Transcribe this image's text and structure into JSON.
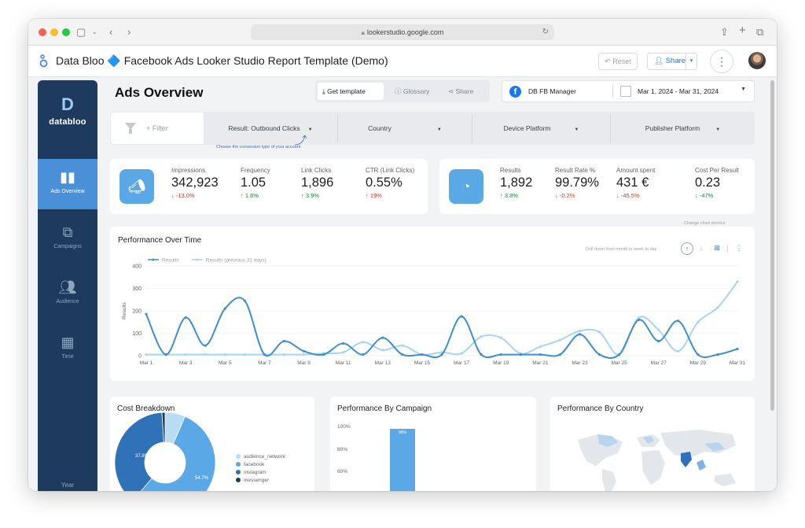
{
  "browser": {
    "url": "lookerstudio.google.com"
  },
  "header": {
    "title": "Data Bloo 🔷 Facebook Ads Looker Studio Report Template (Demo)",
    "reset_label": "Reset",
    "share_label": "Share"
  },
  "sidebar": {
    "brand": "databloo",
    "items": [
      {
        "label": "Ads Overview",
        "icon": "bar-chart-icon",
        "active": true
      },
      {
        "label": "Campaigns",
        "icon": "hierarchy-icon",
        "active": false
      },
      {
        "label": "Audience",
        "icon": "people-icon",
        "active": false
      },
      {
        "label": "Time",
        "icon": "calendar-icon",
        "active": false
      }
    ],
    "footer_label": "Year"
  },
  "page": {
    "title": "Ads Overview",
    "toolbar": {
      "get_template": "Get template",
      "glossary": "Glossary",
      "share": "Share"
    },
    "data_source": "DB FB Manager",
    "date_range": "Mar 1, 2024 - Mar 31, 2024"
  },
  "filters": {
    "add_label": "+ Filter",
    "result_dropdown": "Result: Outbound Clicks",
    "hint": "Choose the conversion type of your account",
    "dropdowns": [
      "Country",
      "Device Platform",
      "Publisher Platform"
    ]
  },
  "kpi_left": [
    {
      "label": "Impressions",
      "value": "342,923",
      "delta": "-13.0%",
      "trend": "down"
    },
    {
      "label": "Frequency",
      "value": "1.05",
      "delta": "1.6%",
      "trend": "up"
    },
    {
      "label": "Link Clicks",
      "value": "1,896",
      "delta": "3.9%",
      "trend": "up"
    },
    {
      "label": "CTR (Link Clicks)",
      "value": "0.55%",
      "delta": "19%",
      "trend": "down"
    }
  ],
  "kpi_right": [
    {
      "label": "Results",
      "value": "1,892",
      "delta": "3.8%",
      "trend": "up"
    },
    {
      "label": "Result Rate %",
      "value": "99.79%",
      "delta": "-0.2%",
      "trend": "down"
    },
    {
      "label": "Amount spent",
      "value": "431 €",
      "delta": "-45.5%",
      "trend": "down"
    },
    {
      "label": "Cost Per Result",
      "value": "0.23",
      "delta": "-47%",
      "trend": "up"
    }
  ],
  "performance": {
    "title": "Performance Over Time",
    "change_note": "Change chart metrics",
    "drill_note": "Drill down from month to week to day"
  },
  "chart_data": {
    "type": "line",
    "ylabel": "Results",
    "ylim": [
      0,
      400
    ],
    "yticks": [
      0,
      100,
      200,
      300,
      400
    ],
    "x": [
      "Mar 1",
      "Mar 2",
      "Mar 3",
      "Mar 4",
      "Mar 5",
      "Mar 6",
      "Mar 7",
      "Mar 8",
      "Mar 9",
      "Mar 10",
      "Mar 11",
      "Mar 12",
      "Mar 13",
      "Mar 14",
      "Mar 15",
      "Mar 16",
      "Mar 17",
      "Mar 18",
      "Mar 19",
      "Mar 20",
      "Mar 21",
      "Mar 22",
      "Mar 23",
      "Mar 24",
      "Mar 25",
      "Mar 26",
      "Mar 27",
      "Mar 28",
      "Mar 29",
      "Mar 30",
      "Mar 31"
    ],
    "xtick_labels": [
      "Mar 1",
      "Mar 3",
      "Mar 5",
      "Mar 7",
      "Mar 9",
      "Mar 11",
      "Mar 13",
      "Mar 15",
      "Mar 17",
      "Mar 19",
      "Mar 21",
      "Mar 23",
      "Mar 25",
      "Mar 27",
      "Mar 29",
      "Mar 31"
    ],
    "series": [
      {
        "name": "Results",
        "color": "#3d8fd1",
        "values": [
          185,
          5,
          170,
          45,
          210,
          245,
          5,
          65,
          20,
          5,
          55,
          5,
          80,
          5,
          5,
          5,
          175,
          5,
          5,
          5,
          5,
          5,
          95,
          5,
          5,
          160,
          65,
          155,
          5,
          5,
          30
        ]
      },
      {
        "name": "Results (previous 31 days)",
        "color": "#a9d4f0",
        "values": [
          5,
          5,
          5,
          5,
          5,
          5,
          5,
          5,
          5,
          10,
          15,
          60,
          25,
          45,
          5,
          15,
          10,
          85,
          80,
          10,
          40,
          70,
          110,
          105,
          5,
          170,
          115,
          20,
          150,
          215,
          330
        ]
      }
    ]
  },
  "cost_breakdown": {
    "title": "Cost Breakdown",
    "segments": [
      {
        "label": "audience_network",
        "color": "#b9dcf5",
        "value": 6.5
      },
      {
        "label": "facebook",
        "color": "#5aa9e6",
        "value": 54.7
      },
      {
        "label": "instagram",
        "color": "#2f72b8",
        "value": 37.8
      },
      {
        "label": "messenger",
        "color": "#1f3a5f",
        "value": 1.0
      }
    ],
    "shown_labels": [
      "37.8%",
      "54.7%"
    ]
  },
  "campaign": {
    "title": "Performance By Campaign",
    "y_labels": [
      "100%",
      "80%",
      "60%"
    ],
    "bar_value": 98,
    "bar_label": "98%"
  },
  "country": {
    "title": "Performance By Country"
  }
}
